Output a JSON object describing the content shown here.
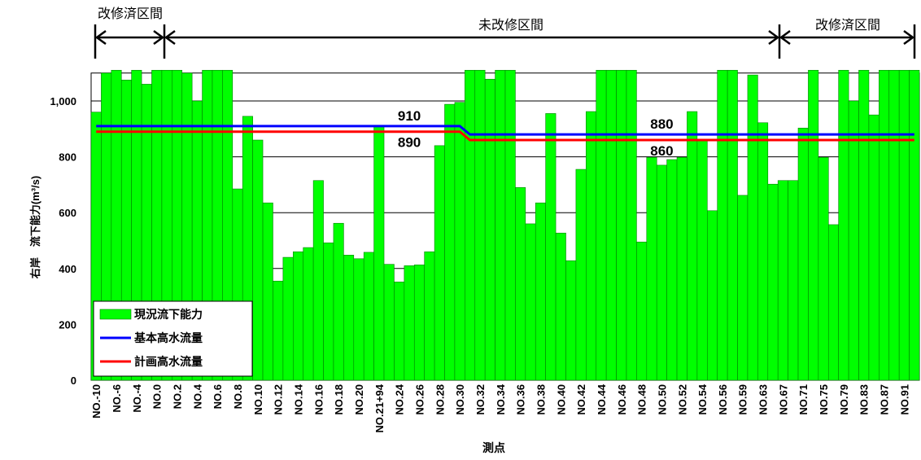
{
  "chart_data": {
    "type": "bar",
    "x_label": "測点",
    "y_label": "右岸　流下能力(m³/s)",
    "annotations": [
      "改修済区間",
      "未改修区間",
      "改修済区間"
    ],
    "categories": [
      "NO.-10",
      null,
      "NO.-6",
      null,
      "NO.-4",
      null,
      "NO.0",
      null,
      "NO.2",
      null,
      "NO.4",
      null,
      "NO.6",
      null,
      "NO.8",
      null,
      "NO.10",
      null,
      "NO.12",
      null,
      "NO.14",
      null,
      "NO.16",
      null,
      "NO.18",
      null,
      "NO.20",
      null,
      "NO.21+94",
      null,
      "NO.24",
      null,
      "NO.26",
      null,
      "NO.28",
      null,
      "NO.30",
      null,
      "NO.32",
      null,
      "NO.34",
      null,
      "NO.36",
      null,
      "NO.38",
      null,
      "NO.40",
      null,
      "NO.42",
      null,
      "NO.44",
      null,
      "NO.46",
      null,
      "NO.48",
      null,
      "NO.50",
      null,
      "NO.52",
      null,
      "NO.54",
      null,
      "NO.56",
      null,
      "NO.59",
      null,
      "NO.63",
      null,
      "NO.67",
      null,
      "NO.71",
      null,
      "NO.75",
      null,
      "NO.79",
      null,
      "NO.83",
      null,
      "NO.87",
      null,
      "NO.91",
      null
    ],
    "series": [
      {
        "name": "現況流下能力",
        "type": "bar",
        "color": "#00ff00",
        "values": [
          960,
          1100,
          1110,
          1075,
          1110,
          1060,
          1110,
          1110,
          1110,
          1100,
          1000,
          1110,
          1110,
          1110,
          685,
          945,
          860,
          635,
          355,
          440,
          460,
          475,
          715,
          492,
          562,
          448,
          435,
          458,
          910,
          415,
          352,
          410,
          413,
          460,
          840,
          988,
          995,
          1110,
          1110,
          1078,
          1110,
          1110,
          690,
          560,
          635,
          955,
          527,
          428,
          755,
          962,
          1110,
          1110,
          1110,
          1110,
          495,
          798,
          770,
          790,
          798,
          962,
          863,
          607,
          1110,
          1110,
          662,
          1093,
          922,
          702,
          715,
          715,
          903,
          1110,
          798,
          557,
          1110,
          1000,
          1110,
          950,
          1110,
          1110,
          1110,
          1110
        ]
      },
      {
        "name": "基本高水流量",
        "type": "line",
        "color": "#0000ff",
        "values": [
          910,
          910,
          910,
          910,
          910,
          910,
          910,
          910,
          910,
          910,
          910,
          910,
          910,
          910,
          910,
          910,
          910,
          910,
          910,
          910,
          910,
          910,
          910,
          910,
          910,
          910,
          910,
          910,
          910,
          910,
          910,
          910,
          910,
          910,
          910,
          910,
          910,
          880,
          880,
          880,
          880,
          880,
          880,
          880,
          880,
          880,
          880,
          880,
          880,
          880,
          880,
          880,
          880,
          880,
          880,
          880,
          880,
          880,
          880,
          880,
          880,
          880,
          880,
          880,
          880,
          880,
          880,
          880,
          880,
          880,
          880,
          880,
          880,
          880,
          880,
          880,
          880,
          880,
          880,
          880,
          880,
          880
        ],
        "value_labels": [
          null,
          null,
          null,
          null,
          null,
          null,
          null,
          null,
          null,
          null,
          null,
          null,
          null,
          null,
          null,
          null,
          null,
          null,
          null,
          null,
          null,
          null,
          null,
          null,
          null,
          null,
          null,
          null,
          null,
          null,
          null,
          "910",
          null,
          null,
          null,
          null,
          null,
          null,
          null,
          null,
          null,
          null,
          null,
          null,
          null,
          null,
          null,
          null,
          null,
          null,
          null,
          null,
          null,
          null,
          null,
          null,
          "880",
          null,
          null,
          null,
          null,
          null,
          null,
          null,
          null,
          null,
          null,
          null,
          null,
          null,
          null,
          null,
          null,
          null,
          null,
          null,
          null,
          null,
          null,
          null,
          null,
          null
        ]
      },
      {
        "name": "計画高水流量",
        "type": "line",
        "color": "#ff0000",
        "values": [
          890,
          890,
          890,
          890,
          890,
          890,
          890,
          890,
          890,
          890,
          890,
          890,
          890,
          890,
          890,
          890,
          890,
          890,
          890,
          890,
          890,
          890,
          890,
          890,
          890,
          890,
          890,
          890,
          890,
          890,
          890,
          890,
          890,
          890,
          890,
          890,
          890,
          860,
          860,
          860,
          860,
          860,
          860,
          860,
          860,
          860,
          860,
          860,
          860,
          860,
          860,
          860,
          860,
          860,
          860,
          860,
          860,
          860,
          860,
          860,
          860,
          860,
          860,
          860,
          860,
          860,
          860,
          860,
          860,
          860,
          860,
          860,
          860,
          860,
          860,
          860,
          860,
          860,
          860,
          860,
          860,
          860
        ],
        "value_labels": [
          null,
          null,
          null,
          null,
          null,
          null,
          null,
          null,
          null,
          null,
          null,
          null,
          null,
          null,
          null,
          null,
          null,
          null,
          null,
          null,
          null,
          null,
          null,
          null,
          null,
          null,
          null,
          null,
          null,
          null,
          null,
          "890",
          null,
          null,
          null,
          null,
          null,
          null,
          null,
          null,
          null,
          null,
          null,
          null,
          null,
          null,
          null,
          null,
          null,
          null,
          null,
          null,
          null,
          null,
          null,
          null,
          "860",
          null,
          null,
          null,
          null,
          null,
          null,
          null,
          null,
          null,
          null,
          null,
          null,
          null,
          null,
          null,
          null,
          null,
          null,
          null,
          null,
          null,
          null,
          null,
          null,
          null
        ]
      }
    ],
    "ylim": [
      0,
      1100
    ],
    "yticks": [
      0,
      200,
      400,
      600,
      800,
      {
        "value": 1000,
        "label": "1,000"
      }
    ],
    "grid": true,
    "legend": "lower left"
  }
}
